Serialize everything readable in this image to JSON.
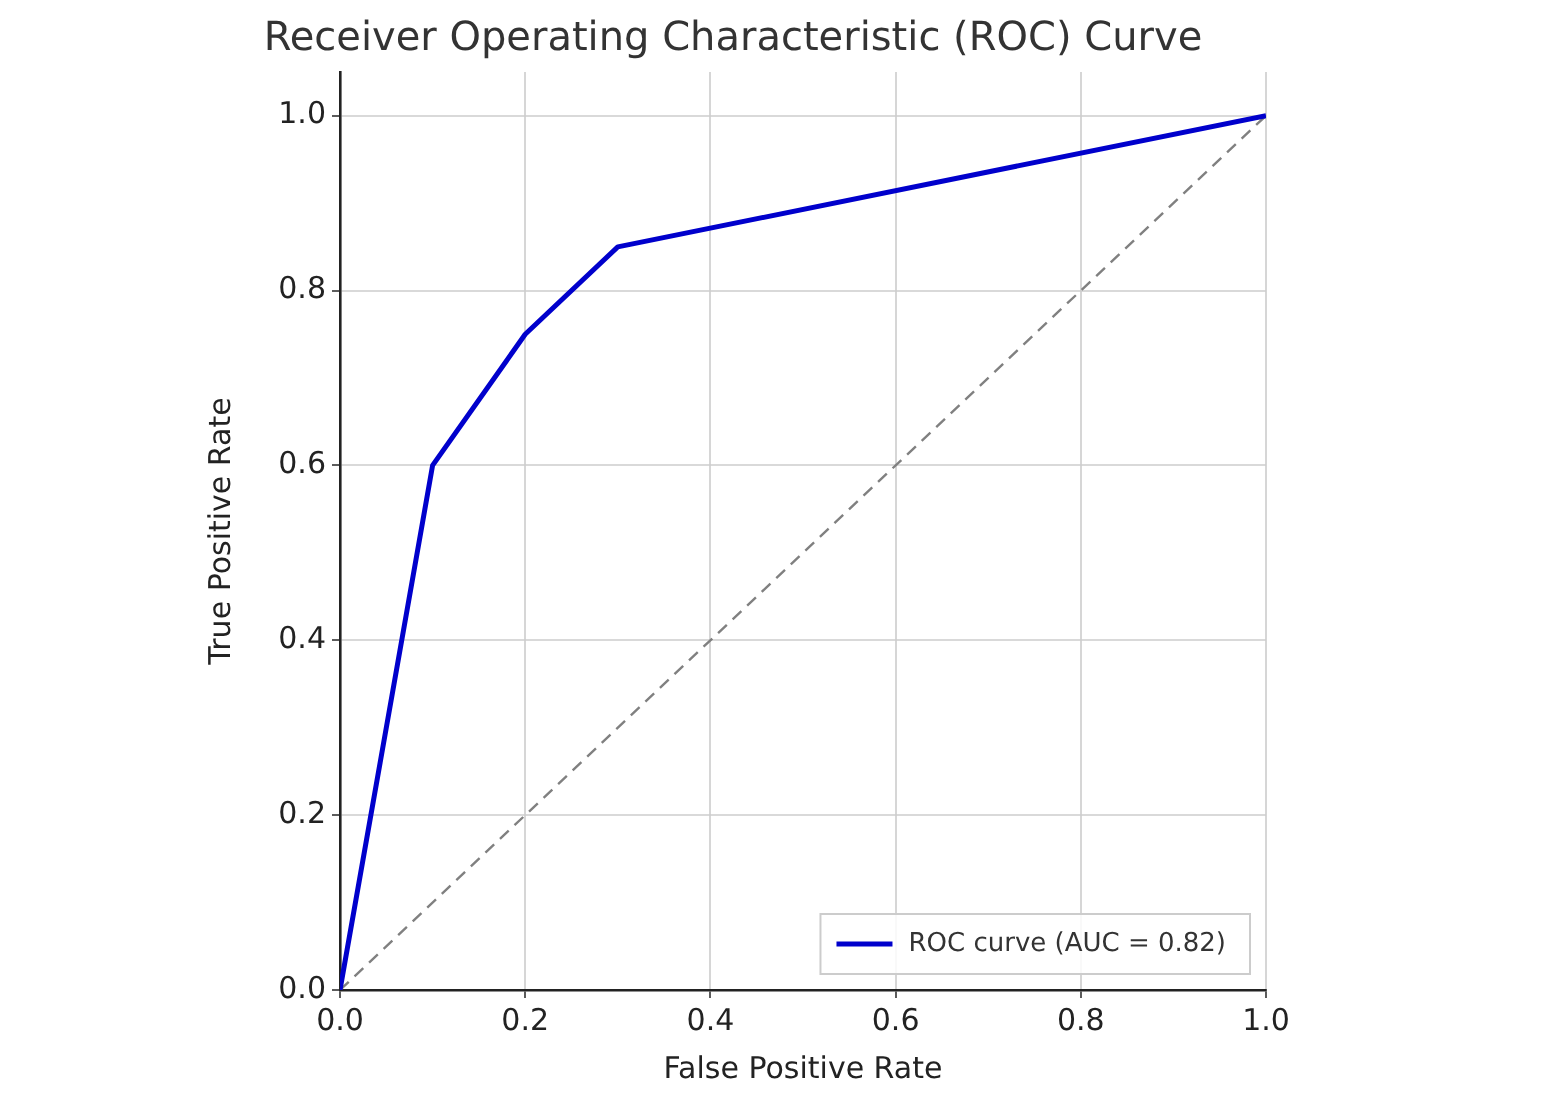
{
  "chart_data": {
    "type": "line",
    "title": "Receiver Operating Characteristic (ROC) Curve",
    "xlabel": "False Positive Rate",
    "ylabel": "True Positive Rate",
    "series": [
      {
        "name": "ROC curve (AUC = 0.82)",
        "color": "#0000cc",
        "x": [
          0,
          0.1,
          0.2,
          0.3,
          1
        ],
        "values": [
          0,
          0.6,
          0.75,
          0.85,
          1
        ]
      },
      {
        "color": "#808080",
        "x": [
          0,
          1
        ],
        "values": [
          0,
          1
        ],
        "line_style": "dashed"
      }
    ],
    "xlim": [
      0,
      1
    ],
    "ylim": [
      0,
      1.05
    ],
    "xticks": [
      {
        "value": 0,
        "label": "0.0"
      },
      0.2,
      0.4,
      0.6,
      0.8,
      {
        "value": 1,
        "label": "1.0"
      }
    ],
    "yticks": [
      {
        "value": 0,
        "label": "0.0"
      },
      0.2,
      0.4,
      0.6,
      0.8,
      {
        "value": 1,
        "label": "1.0"
      }
    ],
    "grid": true,
    "legend": "bottom right",
    "marker": "none",
    "line_style": "solid"
  }
}
